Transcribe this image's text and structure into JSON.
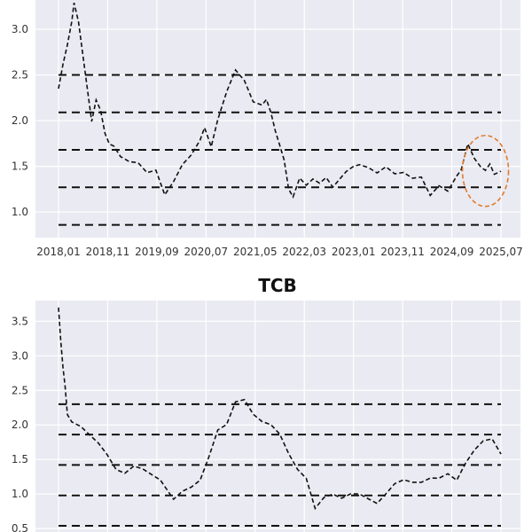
{
  "chart_data": [
    {
      "type": "line",
      "title": "",
      "xlabel": "",
      "ylabel": "",
      "ylim": [
        0.72,
        3.32
      ],
      "x_tick_labels": [
        "2018,01",
        "2018,11",
        "2019,09",
        "2020,07",
        "2021,05",
        "2022,03",
        "2023,01",
        "2023,11",
        "2024,09",
        "2025,07"
      ],
      "y_ticks": [
        1.0,
        1.5,
        2.0,
        2.5,
        3.0
      ],
      "y_tick_labels": [
        "1.0",
        "1.5",
        "2.0",
        "2.5",
        "3.0"
      ],
      "grid": true,
      "reference_lines": [
        0.86,
        1.27,
        1.68,
        2.09,
        2.5
      ],
      "highlight_circle": {
        "x_index_center": 0.965,
        "y_center": 1.45
      },
      "series": [
        {
          "x_index": [
            0.0,
            0.01,
            0.02,
            0.03,
            0.035,
            0.045,
            0.055,
            0.065,
            0.075,
            0.085,
            0.095,
            0.105,
            0.115,
            0.125,
            0.14,
            0.16,
            0.18,
            0.2,
            0.22,
            0.24,
            0.26,
            0.28,
            0.3,
            0.32,
            0.33,
            0.345,
            0.36,
            0.38,
            0.4,
            0.42,
            0.44,
            0.46,
            0.47,
            0.48,
            0.49,
            0.5,
            0.51,
            0.52,
            0.53,
            0.545,
            0.56,
            0.575,
            0.59,
            0.605,
            0.62,
            0.635,
            0.65,
            0.665,
            0.68,
            0.7,
            0.72,
            0.74,
            0.76,
            0.78,
            0.8,
            0.82,
            0.84,
            0.86,
            0.88,
            0.9,
            0.91,
            0.925,
            0.94,
            0.955,
            0.965,
            0.975,
            0.985,
            1.0
          ],
          "values": [
            2.35,
            2.6,
            2.8,
            3.05,
            3.25,
            3.05,
            2.7,
            2.35,
            2.0,
            2.25,
            2.15,
            1.9,
            1.78,
            1.75,
            1.62,
            1.55,
            1.52,
            1.4,
            1.42,
            1.15,
            1.3,
            1.5,
            1.62,
            1.8,
            1.95,
            1.75,
            2.05,
            2.35,
            2.58,
            2.45,
            2.2,
            2.15,
            2.2,
            2.05,
            1.85,
            1.7,
            1.55,
            1.25,
            1.18,
            1.4,
            1.33,
            1.4,
            1.35,
            1.4,
            1.28,
            1.35,
            1.42,
            1.46,
            1.48,
            1.45,
            1.4,
            1.48,
            1.42,
            1.45,
            1.4,
            1.42,
            1.22,
            1.32,
            1.25,
            1.4,
            1.45,
            1.72,
            1.55,
            1.45,
            1.42,
            1.5,
            1.4,
            1.45
          ]
        }
      ]
    },
    {
      "type": "line",
      "title": "TCB",
      "xlabel": "",
      "ylabel": "",
      "ylim": [
        0.45,
        3.8
      ],
      "y_ticks": [
        0.5,
        1.0,
        1.5,
        2.0,
        2.5,
        3.0,
        3.5
      ],
      "y_tick_labels": [
        "0.5",
        "1.0",
        "1.5",
        "2.0",
        "2.5",
        "3.0",
        "3.5"
      ],
      "grid": true,
      "reference_lines": [
        0.54,
        0.98,
        1.42,
        1.86,
        2.3
      ],
      "series": [
        {
          "x_index": [
            0.0,
            0.005,
            0.01,
            0.015,
            0.02,
            0.03,
            0.05,
            0.07,
            0.09,
            0.11,
            0.13,
            0.15,
            0.17,
            0.19,
            0.21,
            0.23,
            0.26,
            0.28,
            0.3,
            0.32,
            0.34,
            0.36,
            0.38,
            0.4,
            0.42,
            0.44,
            0.46,
            0.48,
            0.5,
            0.52,
            0.54,
            0.56,
            0.58,
            0.6,
            0.62,
            0.64,
            0.66,
            0.68,
            0.7,
            0.72,
            0.74,
            0.76,
            0.78,
            0.8,
            0.82,
            0.84,
            0.86,
            0.88,
            0.9,
            0.92,
            0.94,
            0.96,
            0.98,
            1.0
          ],
          "values": [
            3.7,
            3.2,
            2.8,
            2.5,
            2.1,
            2.0,
            1.95,
            1.85,
            1.75,
            1.6,
            1.4,
            1.35,
            1.45,
            1.4,
            1.3,
            1.2,
            0.9,
            1.0,
            1.05,
            1.15,
            1.5,
            1.9,
            2.0,
            2.35,
            2.4,
            2.2,
            2.1,
            2.05,
            1.9,
            1.6,
            1.35,
            1.2,
            0.75,
            0.9,
            0.95,
            0.9,
            0.98,
            1.0,
            0.95,
            0.9,
            1.05,
            1.2,
            1.25,
            1.2,
            1.18,
            1.22,
            1.2,
            1.25,
            1.15,
            1.4,
            1.6,
            1.75,
            1.8,
            1.6
          ]
        }
      ]
    }
  ]
}
